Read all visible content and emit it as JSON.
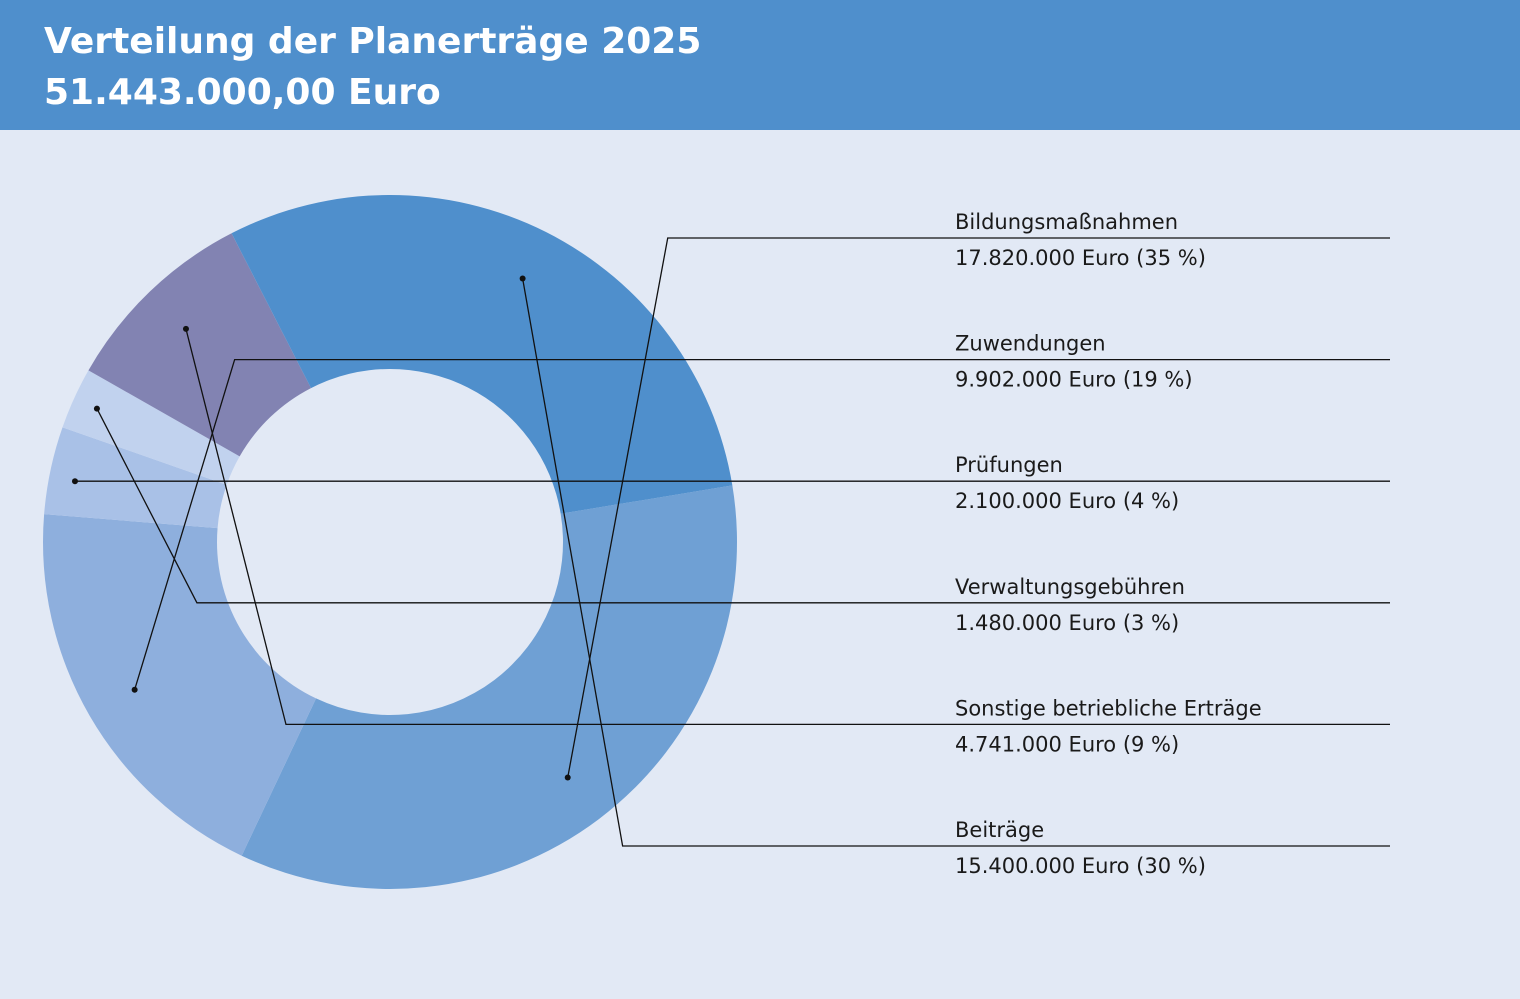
{
  "header": {
    "title": "Verteilung der Planerträge 2025",
    "subtitle": "51.443.000,00 Euro"
  },
  "colors": {
    "header_bg": "#4f8fcc",
    "page_bg": "#e2e9f5"
  },
  "chart_data": {
    "type": "pie",
    "title": "Verteilung der Planerträge 2025",
    "subtitle": "51.443.000,00 Euro",
    "legend_position": "right",
    "slices": [
      {
        "label": "Bildungsmaßnahmen",
        "value": 17820000,
        "text": "17.820.000 Euro (35 %)",
        "color": "#6fa0d4"
      },
      {
        "label": "Zuwendungen",
        "value": 9902000,
        "text": "9.902.000 Euro (19 %)",
        "color": "#8eafdd"
      },
      {
        "label": "Prüfungen",
        "value": 2100000,
        "text": "2.100.000 Euro (4 %)",
        "color": "#a9c1e7"
      },
      {
        "label": "Verwaltungsgebühren",
        "value": 1480000,
        "text": "1.480.000 Euro (3 %)",
        "color": "#c1d2ee"
      },
      {
        "label": "Sonstige betriebliche Erträge",
        "value": 4741000,
        "text": "4.741.000 Euro (9 %)",
        "color": "#8283b2"
      },
      {
        "label": "Beiträge",
        "value": 15400000,
        "text": "15.400.000 Euro (30 %)",
        "color": "#4f8fcc"
      }
    ]
  }
}
